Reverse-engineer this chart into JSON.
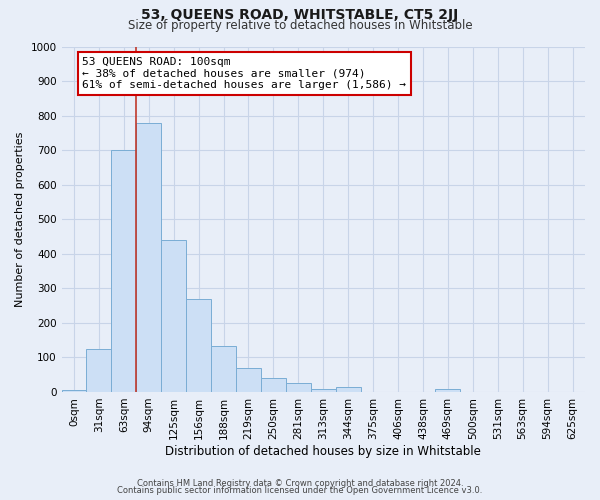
{
  "title": "53, QUEENS ROAD, WHITSTABLE, CT5 2JJ",
  "subtitle": "Size of property relative to detached houses in Whitstable",
  "xlabel": "Distribution of detached houses by size in Whitstable",
  "ylabel": "Number of detached properties",
  "footer_line1": "Contains HM Land Registry data © Crown copyright and database right 2024.",
  "footer_line2": "Contains public sector information licensed under the Open Government Licence v3.0.",
  "bin_labels": [
    "0sqm",
    "31sqm",
    "63sqm",
    "94sqm",
    "125sqm",
    "156sqm",
    "188sqm",
    "219sqm",
    "250sqm",
    "281sqm",
    "313sqm",
    "344sqm",
    "375sqm",
    "406sqm",
    "438sqm",
    "469sqm",
    "500sqm",
    "531sqm",
    "563sqm",
    "594sqm",
    "625sqm"
  ],
  "bar_values": [
    5,
    125,
    700,
    780,
    440,
    270,
    133,
    68,
    40,
    25,
    10,
    15,
    0,
    0,
    0,
    8,
    0,
    0,
    0,
    0,
    0
  ],
  "bar_color": "#ccdff5",
  "bar_edge_color": "#7aadd4",
  "vline_color": "#c0392b",
  "vline_x": 3.0,
  "annotation_title": "53 QUEENS ROAD: 100sqm",
  "annotation_line1": "← 38% of detached houses are smaller (974)",
  "annotation_line2": "61% of semi-detached houses are larger (1,586) →",
  "annotation_box_facecolor": "#ffffff",
  "annotation_box_edgecolor": "#cc0000",
  "ylim": [
    0,
    1000
  ],
  "yticks": [
    0,
    100,
    200,
    300,
    400,
    500,
    600,
    700,
    800,
    900,
    1000
  ],
  "fig_facecolor": "#e8eef8",
  "plot_facecolor": "#e8eef8",
  "grid_color": "#c8d4e8",
  "title_fontsize": 10,
  "subtitle_fontsize": 8.5,
  "ylabel_fontsize": 8,
  "xlabel_fontsize": 8.5,
  "tick_fontsize": 7.5,
  "footer_fontsize": 6
}
